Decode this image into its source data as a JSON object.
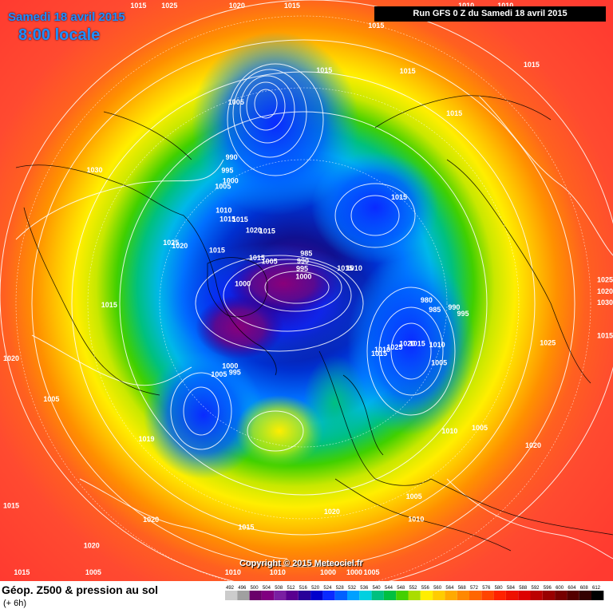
{
  "header": {
    "date": "Samedi 18 avril 2015",
    "time": "8:00 locale",
    "run": "Run GFS 0 Z du Samedi 18 avril 2015"
  },
  "map": {
    "copyright": "Copyright © 2015 Meteociel.fr",
    "pressure_labels": [
      {
        "text": "1015",
        "lon": -175,
        "lat": -8
      },
      {
        "text": "1020",
        "lon": -170,
        "lat": 18
      },
      {
        "text": "1025",
        "lon": -168,
        "lat": 21
      },
      {
        "text": "1030",
        "lon": -172,
        "lat": 22
      },
      {
        "text": "985",
        "lon": -178,
        "lat": 58
      },
      {
        "text": "980",
        "lon": -174,
        "lat": 60
      },
      {
        "text": "995",
        "lon": -178,
        "lat": 52
      },
      {
        "text": "990",
        "lon": -176,
        "lat": 54
      },
      {
        "text": "1005",
        "lon": 162,
        "lat": 54
      },
      {
        "text": "1010",
        "lon": 168,
        "lat": 56
      },
      {
        "text": "1015",
        "lon": 165,
        "lat": 60
      },
      {
        "text": "1020",
        "lon": 163,
        "lat": 62
      },
      {
        "text": "1025",
        "lon": 158,
        "lat": 64
      },
      {
        "text": "1025",
        "lon": 178,
        "lat": 35
      },
      {
        "text": "1020",
        "lon": 156,
        "lat": 30
      },
      {
        "text": "1005",
        "lon": 152,
        "lat": 40
      },
      {
        "text": "1010",
        "lon": 146,
        "lat": 44
      },
      {
        "text": "1005",
        "lon": 128,
        "lat": 38
      },
      {
        "text": "1010",
        "lon": 126,
        "lat": 34
      },
      {
        "text": "1005",
        "lon": 112,
        "lat": 22
      },
      {
        "text": "1000",
        "lon": 108,
        "lat": 16
      },
      {
        "text": "1000",
        "lon": 104,
        "lat": 20
      },
      {
        "text": "1010",
        "lon": 96,
        "lat": 10
      },
      {
        "text": "1005",
        "lon": 76,
        "lat": -10
      },
      {
        "text": "1020",
        "lon": 107,
        "lat": 40
      },
      {
        "text": "1015",
        "lon": 150,
        "lat": 66
      },
      {
        "text": "1010",
        "lon": 153,
        "lat": 66
      },
      {
        "text": "1015",
        "lon": 86,
        "lat": 36
      },
      {
        "text": "1010",
        "lon": 86,
        "lat": 26
      },
      {
        "text": "1020",
        "lon": 66,
        "lat": 30
      },
      {
        "text": "1019",
        "lon": 53,
        "lat": 41
      },
      {
        "text": "1020",
        "lon": 60,
        "lat": 20
      },
      {
        "text": "1005",
        "lon": 54,
        "lat": 61
      },
      {
        "text": "1000",
        "lon": 55,
        "lat": 64
      },
      {
        "text": "995",
        "lon": 60,
        "lat": 64
      },
      {
        "text": "1005",
        "lon": 33,
        "lat": 30
      },
      {
        "text": "1015",
        "lon": 14,
        "lat": 45
      },
      {
        "text": "1020",
        "lon": 20,
        "lat": 11
      },
      {
        "text": "1015",
        "lon": 35,
        "lat": -8
      },
      {
        "text": "1015",
        "lon": 65,
        "lat": -6
      },
      {
        "text": "1015",
        "lon": -60,
        "lat": -5
      },
      {
        "text": "1020",
        "lon": -70,
        "lat": 10
      },
      {
        "text": "1025",
        "lon": -55,
        "lat": 22
      },
      {
        "text": "1030",
        "lon": -20,
        "lat": 36
      },
      {
        "text": "1020",
        "lon": -10,
        "lat": 58
      },
      {
        "text": "1025",
        "lon": -10,
        "lat": 56
      },
      {
        "text": "1000",
        "lon": 3,
        "lat": 74
      },
      {
        "text": "1015",
        "lon": -15,
        "lat": 66
      },
      {
        "text": "1005",
        "lon": -30,
        "lat": 78
      },
      {
        "text": "1015",
        "lon": -25,
        "lat": 75
      },
      {
        "text": "1000",
        "lon": -75,
        "lat": 86
      },
      {
        "text": "995",
        "lon": -78,
        "lat": 84
      },
      {
        "text": "990",
        "lon": -80,
        "lat": 82
      },
      {
        "text": "985",
        "lon": -85,
        "lat": 80
      },
      {
        "text": "1015",
        "lon": -140,
        "lat": 78
      },
      {
        "text": "1010",
        "lon": -145,
        "lat": 76
      },
      {
        "text": "1015",
        "lon": -48,
        "lat": 72
      },
      {
        "text": "1020",
        "lon": -40,
        "lat": 70
      },
      {
        "text": "1015",
        "lon": -38,
        "lat": 66
      },
      {
        "text": "1015",
        "lon": -33,
        "lat": 64
      },
      {
        "text": "1010",
        "lon": -35,
        "lat": 62
      },
      {
        "text": "1005",
        "lon": -60,
        "lat": 44
      },
      {
        "text": "990",
        "lon": -52,
        "lat": 54
      },
      {
        "text": "995",
        "lon": -48,
        "lat": 56
      },
      {
        "text": "1000",
        "lon": -46,
        "lat": 58
      },
      {
        "text": "1005",
        "lon": -42,
        "lat": 58
      },
      {
        "text": "1015",
        "lon": -125,
        "lat": 58
      },
      {
        "text": "1015",
        "lon": -120,
        "lat": 38
      },
      {
        "text": "1015",
        "lon": -105,
        "lat": 36
      },
      {
        "text": "1015",
        "lon": -125,
        "lat": 22
      },
      {
        "text": "1010",
        "lon": -115,
        "lat": 17
      },
      {
        "text": "1010",
        "lon": -108,
        "lat": 18
      },
      {
        "text": "1015",
        "lon": -95,
        "lat": 30
      },
      {
        "text": "1015",
        "lon": -85,
        "lat": 40
      },
      {
        "text": "1015",
        "lon": -78,
        "lat": 14
      }
    ]
  },
  "footer": {
    "title": "Géop. Z500 & pression au sol",
    "subtitle": "(+ 6h)",
    "scale": [
      "492",
      "496",
      "500",
      "504",
      "508",
      "512",
      "516",
      "520",
      "524",
      "528",
      "532",
      "536",
      "540",
      "544",
      "548",
      "552",
      "556",
      "560",
      "564",
      "568",
      "572",
      "576",
      "580",
      "584",
      "588",
      "592",
      "596",
      "600",
      "604",
      "608",
      "612"
    ],
    "colors": [
      "#cccccc",
      "#a0a0a0",
      "#6a006a",
      "#800080",
      "#7a1fa2",
      "#5a0090",
      "#280099",
      "#0000cc",
      "#0a2aff",
      "#0060ff",
      "#00a0ff",
      "#00d0e0",
      "#00c080",
      "#00c040",
      "#44d000",
      "#aadd00",
      "#ffee00",
      "#ffcc00",
      "#ffaa00",
      "#ff8800",
      "#ff6600",
      "#ff4400",
      "#ff2200",
      "#ee1100",
      "#dd0000",
      "#bb0000",
      "#990000",
      "#770000",
      "#550000",
      "#330000",
      "#000000"
    ]
  }
}
